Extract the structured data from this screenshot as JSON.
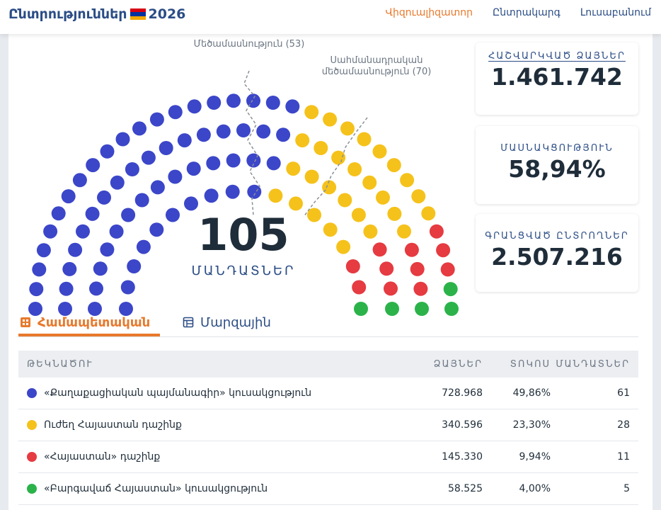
{
  "app": {
    "title": "Ընտրություններ",
    "year": "2026",
    "flag_colors": [
      "#d90012",
      "#0033a0",
      "#f2a800"
    ]
  },
  "nav": {
    "items": [
      {
        "label": "Վիզուալիզատոր",
        "active": true
      },
      {
        "label": "Ընտրակարգ",
        "active": false
      },
      {
        "label": "Լուսաբանում",
        "active": false
      }
    ]
  },
  "parliament": {
    "total_seats": "105",
    "total_label": "ՄԱՆԴԱՏՆԵՐ",
    "majority_label": "Մեծամասնություն (53)",
    "constitutional_label_line1": "Սահմանադրական",
    "constitutional_label_line2": "մեծամասնություն (70)",
    "seat_groups": [
      {
        "seats": 61,
        "color": "#3b46c9"
      },
      {
        "seats": 28,
        "color": "#f5c21b"
      },
      {
        "seats": 11,
        "color": "#e53b41"
      },
      {
        "seats": 5,
        "color": "#2bb34a"
      }
    ]
  },
  "stats": {
    "counted_label": "ՀԱՇՎԱՐԿՎԱԾ ՁԱՅՆԵՐ",
    "counted_value": "1.461.742",
    "turnout_label": "ՄԱՍՆԱԿՑՈՒԹՅՈՒՆ",
    "turnout_value": "58,94%",
    "registered_label": "ԳՐԱՆՑՎԱԾ ԸՆՏՐՈՂՆԵՐ",
    "registered_value": "2.507.216"
  },
  "tabs": {
    "national": "Համապետական",
    "regional": "Մարզային"
  },
  "table": {
    "headers": {
      "party": "ԹԵԿՆԱԾՈՒ",
      "votes": "ՁԱՅՆԵՐ",
      "percent": "ՏՈԿՈՍ",
      "seats": "ՄԱՆԴԱՏՆԵՐ"
    },
    "rows": [
      {
        "party": "«Քաղաքացիական պայմանագիր» կուսակցություն",
        "votes": "728.968",
        "percent": "49,86%",
        "seats": "61",
        "color": "#3b46c9"
      },
      {
        "party": "Ուժեղ Հայաստան դաշինք",
        "votes": "340.596",
        "percent": "23,30%",
        "seats": "28",
        "color": "#f5c21b"
      },
      {
        "party": "«Հայաստան» դաշինք",
        "votes": "145.330",
        "percent": "9,94%",
        "seats": "11",
        "color": "#e53b41"
      },
      {
        "party": "«Բարգավաճ Հայաստան» կուսակցություն",
        "votes": "58.525",
        "percent": "4,00%",
        "seats": "5",
        "color": "#2bb34a"
      }
    ]
  }
}
